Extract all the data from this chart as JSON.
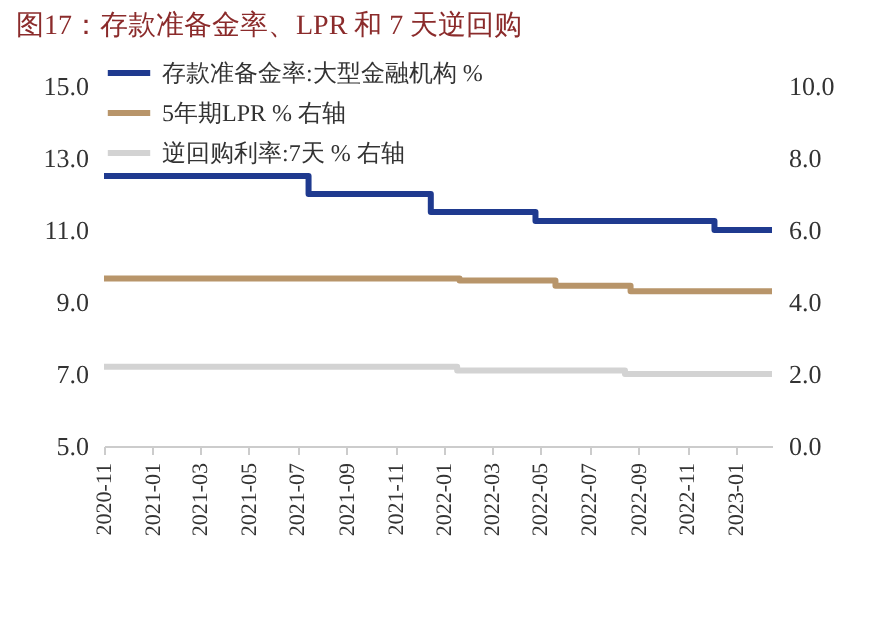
{
  "chart_data": {
    "type": "step",
    "title": "图17：存款准备金率、LPR 和 7 天逆回购",
    "series": [
      {
        "name": "存款准备金率:大型金融机构 %",
        "color": "#1f3a8f",
        "x": [
          "2020-11-01",
          "2021-07-15",
          "2021-12-15",
          "2022-04-25",
          "2022-12-05",
          "2023-02-15"
        ],
        "values": [
          12.5,
          12.0,
          11.5,
          11.25,
          11.0,
          11.0
        ]
      },
      {
        "name": "5年期LPR % 右轴",
        "color": "#b8956a",
        "axis": "y2",
        "x": [
          "2020-11-01",
          "2022-01-20",
          "2022-05-20",
          "2022-08-22",
          "2023-02-15"
        ],
        "values": [
          4.65,
          4.6,
          4.45,
          4.3,
          4.3
        ]
      },
      {
        "name": "逆回购利率:7天 % 右轴",
        "color": "#d3d3d3",
        "axis": "y2",
        "x": [
          "2020-11-01",
          "2022-01-17",
          "2022-08-15",
          "2023-02-15"
        ],
        "values": [
          2.2,
          2.1,
          2.0,
          2.0
        ]
      }
    ],
    "xlim": [
      "2020-11-01",
      "2023-02-15"
    ],
    "xticks": [
      "2020-11",
      "2021-01",
      "2021-03",
      "2021-05",
      "2021-07",
      "2021-09",
      "2021-11",
      "2022-01",
      "2022-03",
      "2022-05",
      "2022-07",
      "2022-09",
      "2022-11",
      "2023-01"
    ],
    "ylim": [
      5,
      15
    ],
    "yticks": [
      {
        "value": 5,
        "label": "5.0"
      },
      {
        "value": 7,
        "label": "7.0"
      },
      {
        "value": 9,
        "label": "9.0"
      },
      {
        "value": 11,
        "label": "11.0"
      },
      {
        "value": 13,
        "label": "13.0"
      },
      {
        "value": 15,
        "label": "15.0"
      }
    ],
    "y2lim": [
      0,
      10
    ],
    "y2ticks": [
      {
        "value": 0,
        "label": "0.0"
      },
      {
        "value": 2,
        "label": "2.0"
      },
      {
        "value": 4,
        "label": "4.0"
      },
      {
        "value": 6,
        "label": "6.0"
      },
      {
        "value": 8,
        "label": "8.0"
      },
      {
        "value": 10,
        "label": "10.0"
      }
    ],
    "grid": false,
    "legend": "top",
    "line_style": "solid",
    "marker": "none"
  }
}
